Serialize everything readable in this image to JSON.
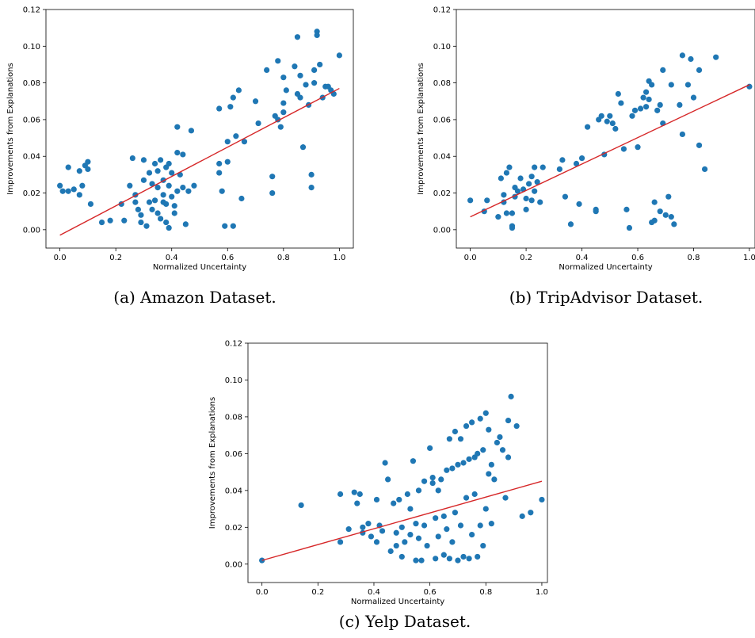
{
  "chart_data": [
    {
      "type": "scatter",
      "caption": "(a) Amazon Dataset.",
      "xlabel": "Normalized Uncertainty",
      "ylabel": "Improvements from Explanations",
      "xlim": [
        -0.05,
        1.05
      ],
      "ylim": [
        -0.01,
        0.12
      ],
      "xticks": [
        "0.0",
        "0.2",
        "0.4",
        "0.6",
        "0.8",
        "1.0"
      ],
      "yticks": [
        "0.00",
        "0.02",
        "0.04",
        "0.06",
        "0.08",
        "0.10",
        "0.12"
      ],
      "point_color": "#1f77b4",
      "fit_line": {
        "color": "#d62728",
        "x": [
          0.0,
          1.0
        ],
        "y": [
          -0.003,
          0.077
        ]
      },
      "points": [
        [
          0.0,
          0.024
        ],
        [
          0.01,
          0.021
        ],
        [
          0.03,
          0.034
        ],
        [
          0.03,
          0.021
        ],
        [
          0.05,
          0.022
        ],
        [
          0.07,
          0.019
        ],
        [
          0.07,
          0.032
        ],
        [
          0.08,
          0.024
        ],
        [
          0.09,
          0.035
        ],
        [
          0.1,
          0.033
        ],
        [
          0.1,
          0.037
        ],
        [
          0.11,
          0.014
        ],
        [
          0.15,
          0.004
        ],
        [
          0.18,
          0.005
        ],
        [
          0.22,
          0.014
        ],
        [
          0.23,
          0.005
        ],
        [
          0.25,
          0.024
        ],
        [
          0.26,
          0.039
        ],
        [
          0.27,
          0.019
        ],
        [
          0.27,
          0.015
        ],
        [
          0.28,
          0.011
        ],
        [
          0.29,
          0.004
        ],
        [
          0.29,
          0.008
        ],
        [
          0.3,
          0.038
        ],
        [
          0.3,
          0.027
        ],
        [
          0.31,
          0.002
        ],
        [
          0.32,
          0.015
        ],
        [
          0.32,
          0.031
        ],
        [
          0.33,
          0.025
        ],
        [
          0.33,
          0.011
        ],
        [
          0.34,
          0.036
        ],
        [
          0.34,
          0.016
        ],
        [
          0.35,
          0.009
        ],
        [
          0.35,
          0.023
        ],
        [
          0.35,
          0.032
        ],
        [
          0.36,
          0.006
        ],
        [
          0.36,
          0.038
        ],
        [
          0.37,
          0.015
        ],
        [
          0.37,
          0.027
        ],
        [
          0.37,
          0.019
        ],
        [
          0.38,
          0.004
        ],
        [
          0.38,
          0.034
        ],
        [
          0.38,
          0.014
        ],
        [
          0.39,
          0.001
        ],
        [
          0.39,
          0.024
        ],
        [
          0.39,
          0.036
        ],
        [
          0.4,
          0.031
        ],
        [
          0.4,
          0.018
        ],
        [
          0.41,
          0.013
        ],
        [
          0.41,
          0.009
        ],
        [
          0.42,
          0.021
        ],
        [
          0.42,
          0.042
        ],
        [
          0.42,
          0.056
        ],
        [
          0.43,
          0.03
        ],
        [
          0.44,
          0.041
        ],
        [
          0.44,
          0.023
        ],
        [
          0.45,
          0.003
        ],
        [
          0.46,
          0.021
        ],
        [
          0.47,
          0.054
        ],
        [
          0.48,
          0.024
        ],
        [
          0.57,
          0.066
        ],
        [
          0.57,
          0.036
        ],
        [
          0.57,
          0.031
        ],
        [
          0.58,
          0.021
        ],
        [
          0.59,
          0.002
        ],
        [
          0.6,
          0.048
        ],
        [
          0.6,
          0.037
        ],
        [
          0.61,
          0.067
        ],
        [
          0.62,
          0.072
        ],
        [
          0.62,
          0.002
        ],
        [
          0.63,
          0.051
        ],
        [
          0.64,
          0.076
        ],
        [
          0.65,
          0.017
        ],
        [
          0.66,
          0.048
        ],
        [
          0.7,
          0.07
        ],
        [
          0.71,
          0.058
        ],
        [
          0.74,
          0.087
        ],
        [
          0.76,
          0.02
        ],
        [
          0.76,
          0.029
        ],
        [
          0.77,
          0.062
        ],
        [
          0.78,
          0.092
        ],
        [
          0.78,
          0.06
        ],
        [
          0.79,
          0.056
        ],
        [
          0.8,
          0.083
        ],
        [
          0.8,
          0.064
        ],
        [
          0.8,
          0.069
        ],
        [
          0.81,
          0.076
        ],
        [
          0.84,
          0.089
        ],
        [
          0.85,
          0.105
        ],
        [
          0.85,
          0.074
        ],
        [
          0.86,
          0.084
        ],
        [
          0.86,
          0.072
        ],
        [
          0.87,
          0.045
        ],
        [
          0.88,
          0.079
        ],
        [
          0.89,
          0.068
        ],
        [
          0.9,
          0.03
        ],
        [
          0.9,
          0.023
        ],
        [
          0.91,
          0.087
        ],
        [
          0.91,
          0.08
        ],
        [
          0.92,
          0.108
        ],
        [
          0.92,
          0.106
        ],
        [
          0.93,
          0.09
        ],
        [
          0.94,
          0.072
        ],
        [
          0.95,
          0.078
        ],
        [
          0.96,
          0.078
        ],
        [
          0.97,
          0.076
        ],
        [
          0.98,
          0.074
        ],
        [
          1.0,
          0.095
        ]
      ]
    },
    {
      "type": "scatter",
      "caption": "(b) TripAdvisor Dataset.",
      "xlabel": "Normalized Uncertainty",
      "ylabel": "Improvements from Explanations",
      "xlim": [
        -0.05,
        1.02
      ],
      "ylim": [
        -0.01,
        0.12
      ],
      "xticks": [
        "0.0",
        "0.2",
        "0.4",
        "0.6",
        "0.8",
        "1.0"
      ],
      "yticks": [
        "0.00",
        "0.02",
        "0.04",
        "0.06",
        "0.08",
        "0.10",
        "0.12"
      ],
      "point_color": "#1f77b4",
      "fit_line": {
        "color": "#d62728",
        "x": [
          0.0,
          1.0
        ],
        "y": [
          0.007,
          0.079
        ]
      },
      "points": [
        [
          0.0,
          0.016
        ],
        [
          0.05,
          0.01
        ],
        [
          0.06,
          0.016
        ],
        [
          0.1,
          0.007
        ],
        [
          0.11,
          0.028
        ],
        [
          0.12,
          0.019
        ],
        [
          0.12,
          0.015
        ],
        [
          0.13,
          0.031
        ],
        [
          0.13,
          0.009
        ],
        [
          0.14,
          0.034
        ],
        [
          0.15,
          0.002
        ],
        [
          0.15,
          0.001
        ],
        [
          0.15,
          0.009
        ],
        [
          0.16,
          0.023
        ],
        [
          0.16,
          0.018
        ],
        [
          0.17,
          0.021
        ],
        [
          0.18,
          0.028
        ],
        [
          0.19,
          0.022
        ],
        [
          0.2,
          0.011
        ],
        [
          0.2,
          0.017
        ],
        [
          0.21,
          0.025
        ],
        [
          0.22,
          0.016
        ],
        [
          0.22,
          0.029
        ],
        [
          0.23,
          0.021
        ],
        [
          0.23,
          0.034
        ],
        [
          0.24,
          0.026
        ],
        [
          0.25,
          0.015
        ],
        [
          0.26,
          0.034
        ],
        [
          0.32,
          0.033
        ],
        [
          0.33,
          0.038
        ],
        [
          0.34,
          0.018
        ],
        [
          0.36,
          0.003
        ],
        [
          0.38,
          0.036
        ],
        [
          0.39,
          0.014
        ],
        [
          0.4,
          0.039
        ],
        [
          0.42,
          0.056
        ],
        [
          0.45,
          0.01
        ],
        [
          0.45,
          0.011
        ],
        [
          0.46,
          0.06
        ],
        [
          0.47,
          0.062
        ],
        [
          0.48,
          0.041
        ],
        [
          0.49,
          0.059
        ],
        [
          0.5,
          0.062
        ],
        [
          0.51,
          0.058
        ],
        [
          0.52,
          0.055
        ],
        [
          0.53,
          0.074
        ],
        [
          0.54,
          0.069
        ],
        [
          0.55,
          0.044
        ],
        [
          0.56,
          0.011
        ],
        [
          0.57,
          0.001
        ],
        [
          0.58,
          0.062
        ],
        [
          0.59,
          0.065
        ],
        [
          0.6,
          0.045
        ],
        [
          0.61,
          0.066
        ],
        [
          0.62,
          0.072
        ],
        [
          0.63,
          0.067
        ],
        [
          0.63,
          0.075
        ],
        [
          0.64,
          0.071
        ],
        [
          0.64,
          0.081
        ],
        [
          0.65,
          0.004
        ],
        [
          0.65,
          0.079
        ],
        [
          0.66,
          0.005
        ],
        [
          0.66,
          0.015
        ],
        [
          0.67,
          0.065
        ],
        [
          0.68,
          0.01
        ],
        [
          0.68,
          0.068
        ],
        [
          0.69,
          0.087
        ],
        [
          0.69,
          0.058
        ],
        [
          0.7,
          0.008
        ],
        [
          0.71,
          0.018
        ],
        [
          0.72,
          0.079
        ],
        [
          0.72,
          0.007
        ],
        [
          0.73,
          0.003
        ],
        [
          0.75,
          0.068
        ],
        [
          0.76,
          0.095
        ],
        [
          0.76,
          0.052
        ],
        [
          0.78,
          0.079
        ],
        [
          0.79,
          0.093
        ],
        [
          0.8,
          0.072
        ],
        [
          0.82,
          0.046
        ],
        [
          0.82,
          0.087
        ],
        [
          0.84,
          0.033
        ],
        [
          0.88,
          0.094
        ],
        [
          1.0,
          0.078
        ]
      ]
    },
    {
      "type": "scatter",
      "caption": "(c) Yelp Dataset.",
      "xlabel": "Normalized Uncertainty",
      "ylabel": "Improvements from Explanations",
      "xlim": [
        -0.05,
        1.02
      ],
      "ylim": [
        -0.01,
        0.12
      ],
      "xticks": [
        "0.0",
        "0.2",
        "0.4",
        "0.6",
        "0.8",
        "1.0"
      ],
      "yticks": [
        "0.00",
        "0.02",
        "0.04",
        "0.06",
        "0.08",
        "0.10",
        "0.12"
      ],
      "point_color": "#1f77b4",
      "fit_line": {
        "color": "#d62728",
        "x": [
          0.0,
          1.0
        ],
        "y": [
          0.002,
          0.045
        ]
      },
      "points": [
        [
          0.0,
          0.002
        ],
        [
          0.14,
          0.032
        ],
        [
          0.28,
          0.038
        ],
        [
          0.28,
          0.012
        ],
        [
          0.31,
          0.019
        ],
        [
          0.33,
          0.039
        ],
        [
          0.34,
          0.033
        ],
        [
          0.35,
          0.038
        ],
        [
          0.36,
          0.017
        ],
        [
          0.36,
          0.02
        ],
        [
          0.38,
          0.022
        ],
        [
          0.39,
          0.015
        ],
        [
          0.41,
          0.035
        ],
        [
          0.41,
          0.012
        ],
        [
          0.42,
          0.021
        ],
        [
          0.43,
          0.018
        ],
        [
          0.44,
          0.055
        ],
        [
          0.45,
          0.046
        ],
        [
          0.46,
          0.007
        ],
        [
          0.47,
          0.033
        ],
        [
          0.48,
          0.01
        ],
        [
          0.48,
          0.017
        ],
        [
          0.49,
          0.035
        ],
        [
          0.5,
          0.004
        ],
        [
          0.5,
          0.02
        ],
        [
          0.51,
          0.012
        ],
        [
          0.52,
          0.038
        ],
        [
          0.53,
          0.016
        ],
        [
          0.53,
          0.03
        ],
        [
          0.54,
          0.056
        ],
        [
          0.55,
          0.002
        ],
        [
          0.55,
          0.022
        ],
        [
          0.56,
          0.04
        ],
        [
          0.56,
          0.014
        ],
        [
          0.57,
          0.002
        ],
        [
          0.58,
          0.045
        ],
        [
          0.58,
          0.021
        ],
        [
          0.59,
          0.01
        ],
        [
          0.6,
          0.063
        ],
        [
          0.61,
          0.044
        ],
        [
          0.61,
          0.047
        ],
        [
          0.62,
          0.003
        ],
        [
          0.62,
          0.025
        ],
        [
          0.63,
          0.04
        ],
        [
          0.63,
          0.015
        ],
        [
          0.64,
          0.046
        ],
        [
          0.65,
          0.005
        ],
        [
          0.65,
          0.026
        ],
        [
          0.66,
          0.051
        ],
        [
          0.66,
          0.019
        ],
        [
          0.67,
          0.068
        ],
        [
          0.67,
          0.003
        ],
        [
          0.68,
          0.052
        ],
        [
          0.68,
          0.012
        ],
        [
          0.69,
          0.072
        ],
        [
          0.69,
          0.028
        ],
        [
          0.7,
          0.054
        ],
        [
          0.7,
          0.002
        ],
        [
          0.71,
          0.068
        ],
        [
          0.71,
          0.021
        ],
        [
          0.72,
          0.055
        ],
        [
          0.72,
          0.004
        ],
        [
          0.73,
          0.075
        ],
        [
          0.73,
          0.036
        ],
        [
          0.74,
          0.057
        ],
        [
          0.74,
          0.003
        ],
        [
          0.75,
          0.077
        ],
        [
          0.75,
          0.016
        ],
        [
          0.76,
          0.038
        ],
        [
          0.76,
          0.058
        ],
        [
          0.77,
          0.06
        ],
        [
          0.77,
          0.004
        ],
        [
          0.78,
          0.079
        ],
        [
          0.78,
          0.021
        ],
        [
          0.79,
          0.062
        ],
        [
          0.79,
          0.01
        ],
        [
          0.8,
          0.082
        ],
        [
          0.8,
          0.03
        ],
        [
          0.81,
          0.073
        ],
        [
          0.81,
          0.049
        ],
        [
          0.82,
          0.054
        ],
        [
          0.82,
          0.022
        ],
        [
          0.83,
          0.046
        ],
        [
          0.84,
          0.066
        ],
        [
          0.85,
          0.069
        ],
        [
          0.86,
          0.062
        ],
        [
          0.87,
          0.036
        ],
        [
          0.88,
          0.078
        ],
        [
          0.88,
          0.058
        ],
        [
          0.89,
          0.091
        ],
        [
          0.91,
          0.075
        ],
        [
          0.93,
          0.026
        ],
        [
          0.96,
          0.028
        ],
        [
          1.0,
          0.035
        ]
      ]
    }
  ]
}
